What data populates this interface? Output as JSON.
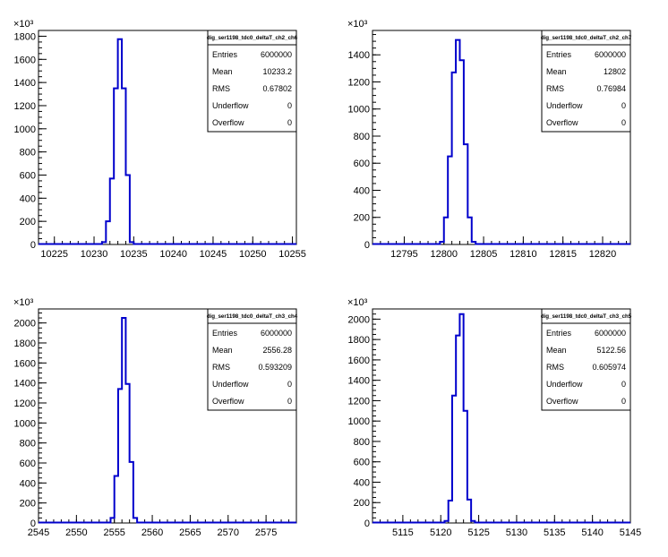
{
  "colors": {
    "histogram": "#0000cc",
    "axis": "#000000",
    "background": "#ffffff"
  },
  "chart_data": [
    {
      "type": "histogram",
      "title": "",
      "xlabel": "",
      "ylabel": "",
      "exponent_label": "×10³",
      "xlim": [
        10223,
        10255.5
      ],
      "ylim": [
        0,
        1850
      ],
      "x_ticks": [
        10225,
        10230,
        10235,
        10240,
        10245,
        10250,
        10255
      ],
      "y_ticks": [
        0,
        200,
        400,
        600,
        800,
        1000,
        1200,
        1400,
        1600,
        1800
      ],
      "bin_edges": [
        10231,
        10231.5,
        10232,
        10232.5,
        10233,
        10233.5,
        10234,
        10234.5,
        10235
      ],
      "bin_values": [
        20,
        200,
        570,
        1350,
        1775,
        1350,
        600,
        20
      ],
      "stats": {
        "name": "dig_ser1198_tdc0_deltaT_ch2_ch6",
        "entries": "6000000",
        "mean": "10233.2",
        "rms": "0.67802",
        "underflow": "0",
        "overflow": "0"
      }
    },
    {
      "type": "histogram",
      "title": "",
      "xlabel": "",
      "ylabel": "",
      "exponent_label": "×10³",
      "xlim": [
        12791,
        12823.5
      ],
      "ylim": [
        0,
        1580
      ],
      "x_ticks": [
        12795,
        12800,
        12805,
        12810,
        12815,
        12820
      ],
      "y_ticks": [
        0,
        200,
        400,
        600,
        800,
        1000,
        1200,
        1400
      ],
      "bin_edges": [
        12799.5,
        12800,
        12800.5,
        12801,
        12801.5,
        12802,
        12802.5,
        12803,
        12803.5,
        12804
      ],
      "bin_values": [
        20,
        200,
        650,
        1270,
        1510,
        1360,
        740,
        200,
        20
      ],
      "stats": {
        "name": "dig_ser1198_tdc0_deltaT_ch2_ch7",
        "entries": "6000000",
        "mean": "12802",
        "rms": "0.76984",
        "underflow": "0",
        "overflow": "0"
      }
    },
    {
      "type": "histogram",
      "title": "",
      "xlabel": "",
      "ylabel": "",
      "exponent_label": "×10³",
      "xlim": [
        2545,
        2579
      ],
      "ylim": [
        0,
        2140
      ],
      "x_ticks": [
        2545,
        2550,
        2555,
        2560,
        2565,
        2570,
        2575
      ],
      "y_ticks": [
        0,
        200,
        400,
        600,
        800,
        1000,
        1200,
        1400,
        1600,
        1800,
        2000
      ],
      "bin_edges": [
        2554.5,
        2555,
        2555.5,
        2556,
        2556.5,
        2557,
        2557.5,
        2558
      ],
      "bin_values": [
        50,
        470,
        1340,
        2050,
        1390,
        610,
        50
      ],
      "stats": {
        "name": "dig_ser1198_tdc0_deltaT_ch3_ch4",
        "entries": "6000000",
        "mean": "2556.28",
        "rms": "0.593209",
        "underflow": "0",
        "overflow": "0"
      }
    },
    {
      "type": "histogram",
      "title": "",
      "xlabel": "",
      "ylabel": "",
      "exponent_label": "×10³",
      "xlim": [
        5111,
        5145
      ],
      "ylim": [
        0,
        2100
      ],
      "x_ticks": [
        5115,
        5120,
        5125,
        5130,
        5135,
        5140,
        5145
      ],
      "y_ticks": [
        0,
        200,
        400,
        600,
        800,
        1000,
        1200,
        1400,
        1600,
        1800,
        2000
      ],
      "bin_edges": [
        5120.5,
        5121,
        5121.5,
        5122,
        5122.5,
        5123,
        5123.5,
        5124,
        5124.5
      ],
      "bin_values": [
        20,
        220,
        1250,
        1840,
        2050,
        1100,
        230,
        20
      ],
      "stats": {
        "name": "dig_ser1198_tdc0_deltaT_ch3_ch5",
        "entries": "6000000",
        "mean": "5122.56",
        "rms": "0.605974",
        "underflow": "0",
        "overflow": "0"
      }
    }
  ],
  "stat_labels": {
    "entries": "Entries",
    "mean": "Mean",
    "rms": "RMS",
    "underflow": "Underflow",
    "overflow": "Overflow"
  }
}
